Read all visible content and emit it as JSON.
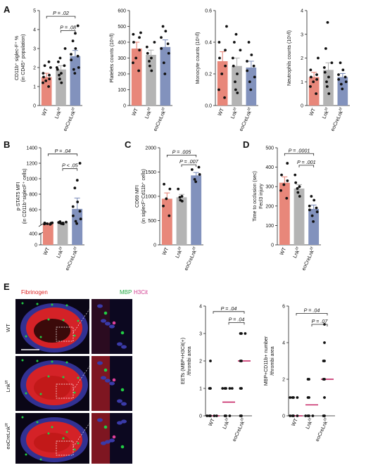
{
  "chart_data": [
    {
      "id": "A1",
      "panel": "A",
      "type": "bar",
      "ylabel": "CD11b⁺ siglec-F⁺ %",
      "ylabel2": "(in CD45⁺ population)",
      "ylim": [
        0,
        5
      ],
      "yticks": [
        "0",
        "1",
        "2",
        "3",
        "4",
        "5"
      ],
      "categories": [
        "WT",
        "Lnk",
        "eoCreLnk"
      ],
      "means": [
        1.5,
        1.9,
        2.6
      ],
      "errors": [
        0.2,
        0.2,
        0.3
      ],
      "points": [
        [
          1.0,
          1.2,
          1.3,
          1.4,
          1.5,
          1.6,
          1.7,
          2.0,
          2.1,
          2.3
        ],
        [
          1.2,
          1.4,
          1.6,
          1.7,
          1.9,
          2.0,
          2.1,
          2.3,
          2.5,
          3.0
        ],
        [
          1.7,
          1.9,
          2.0,
          2.4,
          2.6,
          2.7,
          3.0,
          3.4,
          3.8,
          4.2
        ]
      ],
      "brackets": [
        {
          "from": 0,
          "to": 2,
          "label": "P = .02",
          "y": 4.7
        },
        {
          "from": 1,
          "to": 2,
          "label": "P = .08",
          "y": 3.95
        }
      ]
    },
    {
      "id": "A2",
      "panel": "A",
      "type": "bar",
      "ylabel": "Platelets counts (10⁹/l)",
      "ylim": [
        0,
        600
      ],
      "yticks": [
        "0",
        "100",
        "200",
        "300",
        "400",
        "500",
        "600"
      ],
      "categories": [
        "WT",
        "Lnk",
        "eoCreLnk"
      ],
      "means": [
        360,
        320,
        370
      ],
      "errors": [
        40,
        30,
        45
      ],
      "points": [
        [
          220,
          270,
          300,
          350,
          400,
          430,
          450,
          460
        ],
        [
          220,
          250,
          280,
          300,
          330,
          370,
          400
        ],
        [
          200,
          270,
          330,
          360,
          390,
          430,
          470,
          500
        ]
      ],
      "brackets": []
    },
    {
      "id": "A3",
      "panel": "A",
      "type": "bar",
      "ylabel": "Monocyte counts (10⁹/l)",
      "ylim": [
        0,
        0.6
      ],
      "yticks": [
        "0.0",
        "0.2",
        "0.4",
        "0.6"
      ],
      "categories": [
        "WT",
        "Lnk",
        "eoCreLnk"
      ],
      "means": [
        0.28,
        0.25,
        0.24
      ],
      "errors": [
        0.06,
        0.05,
        0.04
      ],
      "points": [
        [
          0.05,
          0.1,
          0.2,
          0.25,
          0.3,
          0.35,
          0.4,
          0.5
        ],
        [
          0.08,
          0.1,
          0.15,
          0.2,
          0.25,
          0.3,
          0.35,
          0.4,
          0.45
        ],
        [
          0.1,
          0.15,
          0.18,
          0.22,
          0.25,
          0.28,
          0.32,
          0.4
        ]
      ],
      "brackets": []
    },
    {
      "id": "A4",
      "panel": "A",
      "type": "bar",
      "ylabel": "Neutrophils counts (10⁹/l)",
      "ylim": [
        0,
        4
      ],
      "yticks": [
        "0",
        "1",
        "2",
        "3",
        "4"
      ],
      "categories": [
        "WT",
        "Lnk",
        "eoCreLnk"
      ],
      "means": [
        1.2,
        1.5,
        1.2
      ],
      "errors": [
        0.2,
        0.3,
        0.15
      ],
      "points": [
        [
          0.5,
          0.8,
          1.0,
          1.1,
          1.2,
          1.3,
          1.5,
          2.0
        ],
        [
          0.5,
          0.8,
          1.0,
          1.2,
          1.4,
          1.6,
          1.8,
          2.4,
          3.5
        ],
        [
          0.7,
          0.9,
          1.0,
          1.1,
          1.2,
          1.3,
          1.5,
          1.8
        ]
      ],
      "brackets": []
    },
    {
      "id": "B",
      "panel": "B",
      "type": "bar",
      "ylabel": "p-STAT5 MFI",
      "ylabel2": "(in CD11b⁺siglecF⁺ cells)",
      "broken_axis": true,
      "low_ylim": [
        0,
        400
      ],
      "low_yticks": [
        "0"
      ],
      "ylim": [
        400,
        1400
      ],
      "yticks": [
        "400",
        "600",
        "800",
        "1000",
        "1200",
        "1400"
      ],
      "categories": [
        "WT",
        "Lnk",
        "eoCreLnk"
      ],
      "means": [
        420,
        430,
        610
      ],
      "errors": [
        5,
        5,
        140
      ],
      "points": [
        [
          410,
          415,
          418,
          420,
          422,
          425,
          428,
          430
        ],
        [
          415,
          420,
          425,
          428,
          432,
          435,
          440,
          445
        ],
        [
          420,
          450,
          480,
          520,
          580,
          640,
          700,
          880,
          980,
          1200
        ]
      ],
      "brackets": [
        {
          "from": 0,
          "to": 2,
          "label": "P = .04",
          "y": 1320
        },
        {
          "from": 1,
          "to": 2,
          "label": "P < .05",
          "y": 1130
        }
      ]
    },
    {
      "id": "C",
      "panel": "C",
      "type": "bar",
      "ylabel": "CD69 MFI",
      "ylabel2": "(in siglecF⁺Cd11b⁺ cells)",
      "ylim": [
        0,
        2000
      ],
      "yticks": [
        "0",
        "500",
        "1000",
        "1500",
        "2000"
      ],
      "categories": [
        "WT",
        "Lnk",
        "eoCreLnk"
      ],
      "means": [
        950,
        980,
        1430
      ],
      "errors": [
        120,
        60,
        60
      ],
      "points": [
        [
          600,
          800,
          950,
          1150,
          1250
        ],
        [
          900,
          920,
          980,
          1000,
          1150
        ],
        [
          1300,
          1350,
          1450,
          1550,
          1600
        ]
      ],
      "brackets": [
        {
          "from": 0,
          "to": 2,
          "label": "P = .005",
          "y": 1850
        },
        {
          "from": 1,
          "to": 2,
          "label": "P = .007",
          "y": 1650
        }
      ]
    },
    {
      "id": "D",
      "panel": "D",
      "type": "bar",
      "ylabel": "Time to occlusion (sec)",
      "ylabel2": "Fecl3 injury",
      "ylim": [
        0,
        500
      ],
      "yticks": [
        "0",
        "100",
        "200",
        "300",
        "400",
        "500"
      ],
      "categories": [
        "WT",
        "Lnk",
        "eoCreLnk"
      ],
      "means": [
        320,
        290,
        185
      ],
      "errors": [
        30,
        20,
        20
      ],
      "points": [
        [
          240,
          280,
          310,
          330,
          360,
          420
        ],
        [
          250,
          270,
          290,
          300,
          320,
          360
        ],
        [
          120,
          150,
          170,
          180,
          190,
          200,
          230,
          250
        ]
      ],
      "brackets": [
        {
          "from": 0,
          "to": 2,
          "label": "P = .0001",
          "y": 470
        },
        {
          "from": 1,
          "to": 2,
          "label": "P = .001",
          "y": 410
        }
      ]
    },
    {
      "id": "E1",
      "panel": "E",
      "type": "scatter",
      "ylabel": "EETs (MBP+H3Cit(+)",
      "ylabel2": "/thrombi area",
      "ylim": [
        0,
        4
      ],
      "yticks": [
        "0",
        "1",
        "2",
        "3",
        "4"
      ],
      "categories": [
        "WT",
        "Lnk",
        "eoCreLnk"
      ],
      "medians": [
        0,
        0.5,
        2
      ],
      "points": [
        [
          0,
          0,
          0,
          0,
          0,
          1,
          1,
          2
        ],
        [
          0,
          0,
          0,
          1,
          1,
          1,
          1,
          1
        ],
        [
          0,
          0,
          1,
          1,
          2,
          2,
          3,
          3,
          3
        ]
      ],
      "brackets": [
        {
          "from": 0,
          "to": 2,
          "label": "P = .04",
          "y": 3.8
        },
        {
          "from": 1,
          "to": 2,
          "label": "P = .04",
          "y": 3.4
        }
      ]
    },
    {
      "id": "E2",
      "panel": "E",
      "type": "scatter",
      "ylabel": "MBP+CD11b+ number",
      "ylabel2": "/thrombi area",
      "ylim": [
        0,
        6
      ],
      "yticks": [
        "0",
        "2",
        "4",
        "6"
      ],
      "categories": [
        "WT",
        "Lnk",
        "eoCreLnk"
      ],
      "medians": [
        0,
        0.6,
        2
      ],
      "points": [
        [
          0,
          0,
          0,
          0,
          1,
          1,
          1,
          1
        ],
        [
          0,
          0,
          0,
          0,
          1,
          1,
          2,
          2
        ],
        [
          0,
          0,
          1,
          2,
          2,
          3,
          3,
          4,
          5
        ]
      ],
      "brackets": [
        {
          "from": 0,
          "to": 2,
          "label": "P = .04",
          "y": 5.6
        },
        {
          "from": 1,
          "to": 2,
          "label": "P = .07",
          "y": 5.0
        }
      ]
    }
  ],
  "panels": {
    "A": "A",
    "B": "B",
    "C": "C",
    "D": "D",
    "E": "E"
  },
  "labels": {
    "superscript": "f/f",
    "microscopy_row_labels": [
      "WT",
      "Lnk",
      "eoCreLnk"
    ],
    "fibrinogen": "Fibrinogen",
    "mbp": "MBP",
    "h3cit": "H3Cit"
  },
  "colors": {
    "WT": "#e8877a",
    "Lnk": "#b4b4b4",
    "eoCreLnk": "#8292bd",
    "median_line": "#c2185b",
    "fibrinogen": "#dd2222",
    "mbp": "#22cc44",
    "h3cit": "#e0409a",
    "nuclei": "#3a3aa8"
  }
}
